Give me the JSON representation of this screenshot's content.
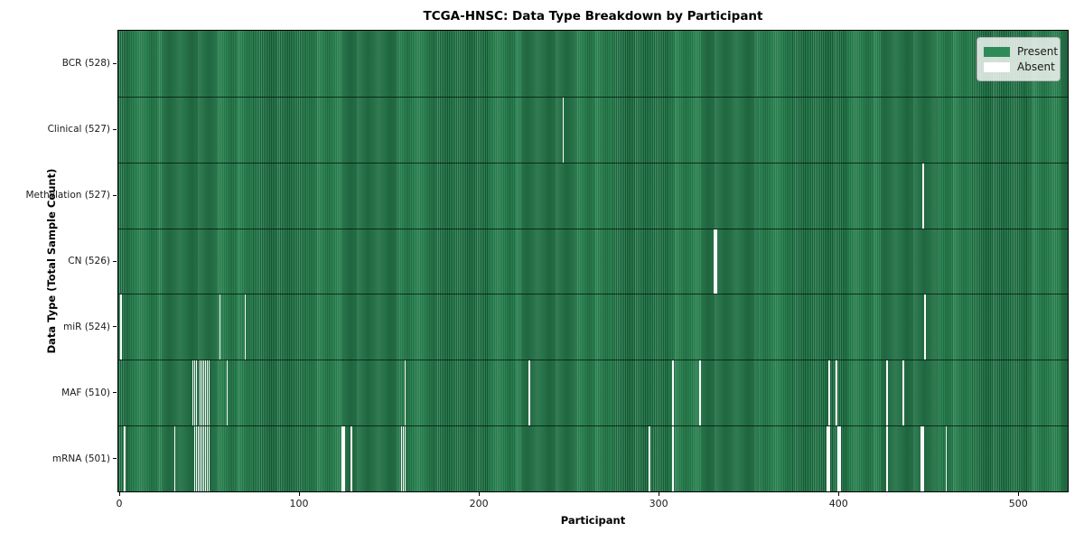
{
  "chart_data": {
    "type": "heatmap",
    "title": "TCGA-HNSC: Data Type Breakdown by Participant",
    "xlabel": "Participant",
    "ylabel": "Data Type (Total Sample Count)",
    "total_participants": 528,
    "x_ticks": [
      0,
      100,
      200,
      300,
      400,
      500
    ],
    "grid": false,
    "legend_position": "upper right",
    "colors": {
      "present": "#2e8b57",
      "absent": "#ffffff",
      "bar_edge": "#0a2618",
      "plot_border": "#000000"
    },
    "legend": [
      {
        "label": "Present",
        "color": "#2e8b57"
      },
      {
        "label": "Absent",
        "color": "#ffffff"
      }
    ],
    "rows": [
      {
        "data_type": "BCR",
        "count": 528,
        "label": "BCR (528)",
        "absent_participants": []
      },
      {
        "data_type": "Clinical",
        "count": 527,
        "label": "Clinical (527)",
        "absent_participants": [
          247
        ]
      },
      {
        "data_type": "Methylation",
        "count": 527,
        "label": "Methylation (527)",
        "absent_participants": [
          447
        ]
      },
      {
        "data_type": "CN",
        "count": 526,
        "label": "CN (526)",
        "absent_participants": [
          331,
          332
        ]
      },
      {
        "data_type": "miR",
        "count": 524,
        "label": "miR (524)",
        "absent_participants": [
          1,
          56,
          70,
          448
        ]
      },
      {
        "data_type": "MAF",
        "count": 510,
        "label": "MAF (510)",
        "absent_participants": [
          41,
          42,
          43,
          45,
          46,
          47,
          48,
          49,
          50,
          60,
          159,
          228,
          308,
          323,
          395,
          399,
          427,
          436
        ]
      },
      {
        "data_type": "mRNA",
        "count": 501,
        "label": "mRNA (501)",
        "absent_participants": [
          3,
          31,
          42,
          43,
          44,
          45,
          46,
          47,
          48,
          49,
          50,
          124,
          125,
          129,
          157,
          158,
          159,
          295,
          308,
          394,
          395,
          400,
          401,
          427,
          446,
          447,
          460
        ]
      }
    ]
  }
}
